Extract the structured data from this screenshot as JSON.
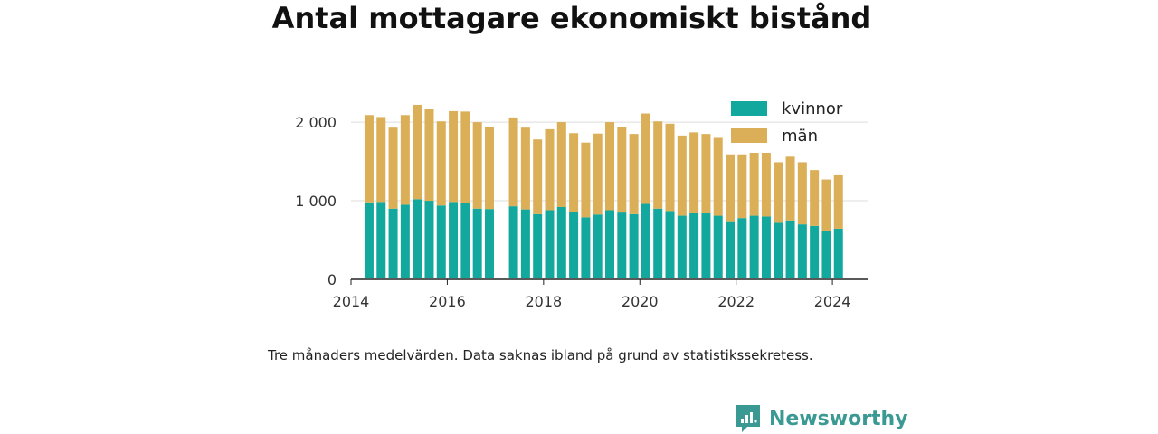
{
  "title": "Antal mottagare ekonomiskt bistånd",
  "note": "Tre månaders medelvärden. Data saknas ibland på grund av statistikssekretess.",
  "brand": {
    "name": "Newsworthy",
    "icon": "newsworthy-logo-icon",
    "color": "#3a9a93"
  },
  "chart_data": {
    "type": "bar",
    "stacked": true,
    "title": "Antal mottagare ekonomiskt bistånd",
    "xlabel": "",
    "ylabel": "",
    "ylim": [
      0,
      2300
    ],
    "yticks": [
      0,
      1000,
      2000
    ],
    "ytick_labels": [
      "0",
      "1 000",
      "2 000"
    ],
    "xlim": [
      2014.0,
      2024.75
    ],
    "xticks": [
      2014,
      2016,
      2018,
      2020,
      2022,
      2024
    ],
    "xtick_labels": [
      "2014",
      "2016",
      "2018",
      "2020",
      "2022",
      "2024"
    ],
    "grid": true,
    "legend_position": "top-right",
    "x": [
      2014.375,
      2014.625,
      2014.875,
      2015.125,
      2015.375,
      2015.625,
      2015.875,
      2016.125,
      2016.375,
      2016.625,
      2016.875,
      2017.375,
      2017.625,
      2017.875,
      2018.125,
      2018.375,
      2018.625,
      2018.875,
      2019.125,
      2019.375,
      2019.625,
      2019.875,
      2020.125,
      2020.375,
      2020.625,
      2020.875,
      2021.125,
      2021.375,
      2021.625,
      2021.875,
      2022.125,
      2022.375,
      2022.625,
      2022.875,
      2023.125,
      2023.375,
      2023.625,
      2023.875,
      2024.125
    ],
    "series": [
      {
        "name": "kvinnor",
        "color": "#12a89d",
        "values": [
          980,
          985,
          900,
          950,
          1020,
          1000,
          940,
          985,
          975,
          900,
          895,
          930,
          890,
          830,
          880,
          920,
          860,
          790,
          825,
          880,
          850,
          830,
          960,
          900,
          870,
          810,
          840,
          840,
          810,
          740,
          780,
          810,
          800,
          720,
          750,
          700,
          680,
          610,
          645
        ]
      },
      {
        "name": "män",
        "color": "#dbae58",
        "values": [
          1110,
          1080,
          1030,
          1140,
          1200,
          1170,
          1070,
          1155,
          1160,
          1100,
          1045,
          1130,
          1040,
          950,
          1030,
          1080,
          1000,
          950,
          1030,
          1120,
          1090,
          1020,
          1150,
          1110,
          1110,
          1020,
          1030,
          1010,
          990,
          850,
          810,
          800,
          810,
          770,
          810,
          790,
          710,
          660,
          690
        ]
      }
    ]
  }
}
